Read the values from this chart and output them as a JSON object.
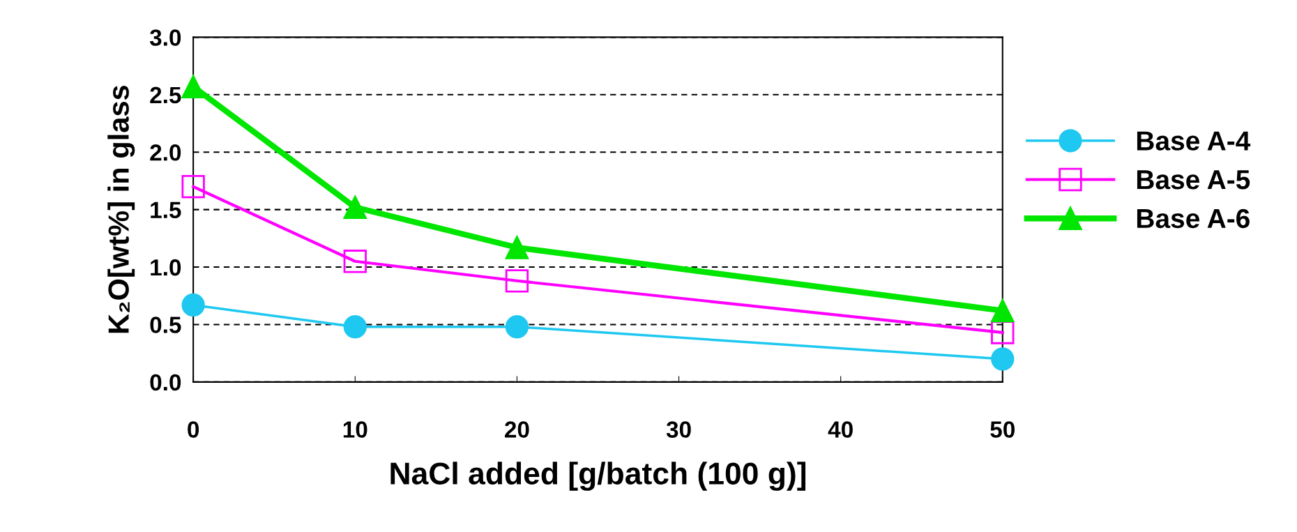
{
  "chart_data": {
    "type": "line",
    "xlabel": "NaCl added [g/batch (100 g)]",
    "ylabel": "K₂O[wt%] in glass",
    "x": [
      0,
      10,
      20,
      50
    ],
    "series": [
      {
        "name": "Base A-4",
        "color": "#1ec8f0",
        "marker": "circle",
        "values": [
          0.67,
          0.48,
          0.48,
          0.2
        ]
      },
      {
        "name": "Base A-5",
        "color": "#ff00ff",
        "marker": "square",
        "values": [
          1.7,
          1.05,
          0.88,
          0.43
        ]
      },
      {
        "name": "Base A-6",
        "color": "#00e600",
        "marker": "triangle",
        "values": [
          2.57,
          1.52,
          1.17,
          0.62
        ]
      }
    ],
    "xlim": [
      0,
      50
    ],
    "xticks": [
      0,
      10,
      20,
      30,
      40,
      50
    ],
    "ylim": [
      0,
      3.0
    ],
    "yticks": [
      {
        "value": 0,
        "label": "0.0"
      },
      {
        "value": 0.5,
        "label": "0.5"
      },
      {
        "value": 1.0,
        "label": "1.0"
      },
      {
        "value": 1.5,
        "label": "1.5"
      },
      {
        "value": 2.0,
        "label": "2.0"
      },
      {
        "value": 2.5,
        "label": "2.5"
      },
      {
        "value": 3.0,
        "label": "3.0"
      }
    ],
    "grid": "y",
    "legend": "right",
    "line_style": "solid"
  }
}
